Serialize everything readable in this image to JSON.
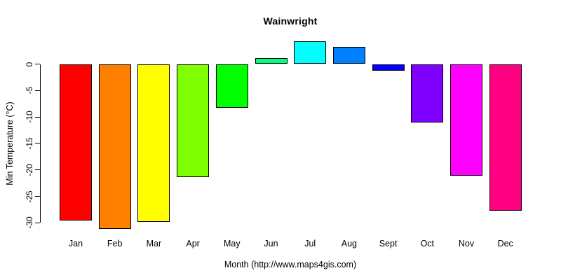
{
  "title": "Wainwright",
  "chart_data": {
    "type": "bar",
    "title": "Wainwright",
    "xlabel": "Month (http://www.maps4gis.com)",
    "ylabel": "Min Temperature (°C)",
    "categories": [
      "Jan",
      "Feb",
      "Mar",
      "Apr",
      "May",
      "Jun",
      "Jul",
      "Aug",
      "Sept",
      "Oct",
      "Nov",
      "Dec"
    ],
    "values": [
      -29.5,
      -31.1,
      -29.8,
      -21.3,
      -8.3,
      1.1,
      4.3,
      3.2,
      -1.2,
      -11.0,
      -21.1,
      -27.7
    ],
    "bar_colors": [
      "#FF0000",
      "#FF8000",
      "#FFFF00",
      "#80FF00",
      "#00FF00",
      "#00FF80",
      "#00FFFF",
      "#0080FF",
      "#0000FF",
      "#8000FF",
      "#FF00FF",
      "#FF0080"
    ],
    "bar_border_color": "#000000",
    "yticks": [
      0,
      -5,
      -10,
      -15,
      -20,
      -25,
      -30
    ],
    "ylim": [
      -31.5,
      5.5
    ],
    "grid": false,
    "legend": false,
    "axis_color": "#000000",
    "background_color": "#FFFFFF"
  }
}
